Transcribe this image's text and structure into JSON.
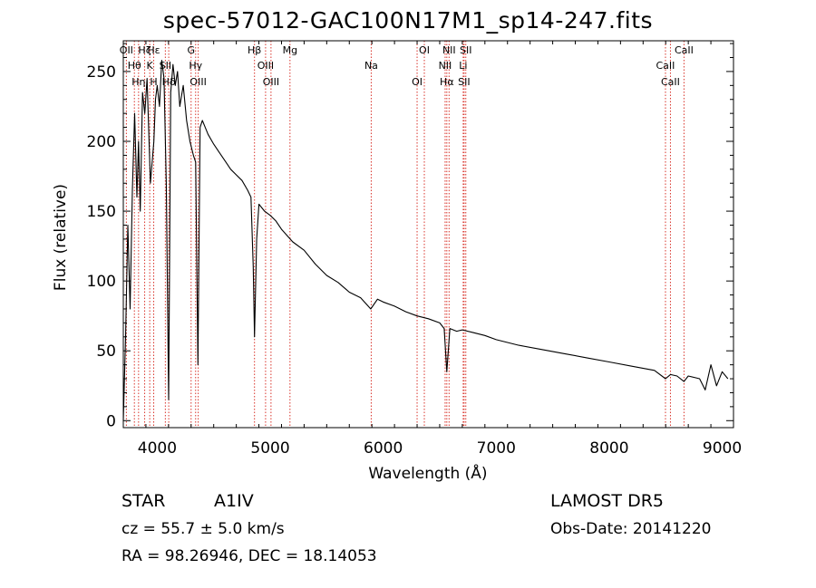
{
  "chart_data": {
    "type": "line",
    "title": "spec-57012-GAC100N17M1_sp14-247.fits",
    "xlabel": "Wavelength (Å)",
    "ylabel": "Flux (relative)",
    "xlim": [
      3700,
      9100
    ],
    "ylim": [
      -5,
      272
    ],
    "xticks": [
      4000,
      5000,
      6000,
      7000,
      8000,
      9000
    ],
    "yticks": [
      0,
      50,
      100,
      150,
      200,
      250
    ],
    "grid": false,
    "series": [
      {
        "x": [
          3700,
          3720,
          3740,
          3760,
          3780,
          3800,
          3820,
          3835,
          3850,
          3870,
          3890,
          3910,
          3940,
          3970,
          3985,
          4000,
          4020,
          4040,
          4060,
          4080,
          4101,
          4120,
          4140,
          4160,
          4180,
          4200,
          4230,
          4260,
          4290,
          4320,
          4340,
          4360,
          4380,
          4400,
          4450,
          4500,
          4550,
          4600,
          4650,
          4700,
          4750,
          4800,
          4830,
          4850,
          4861,
          4880,
          4900,
          4950,
          5000,
          5050,
          5100,
          5200,
          5300,
          5400,
          5500,
          5600,
          5700,
          5800,
          5890,
          5950,
          6000,
          6100,
          6200,
          6300,
          6400,
          6500,
          6540,
          6563,
          6590,
          6650,
          6700,
          6800,
          6900,
          7000,
          7200,
          7400,
          7600,
          7800,
          8000,
          8200,
          8400,
          8498,
          8542,
          8600,
          8662,
          8700,
          8800,
          8850,
          8900,
          8950,
          9000,
          9050
        ],
        "y": [
          0,
          60,
          140,
          80,
          165,
          220,
          160,
          200,
          150,
          235,
          220,
          245,
          170,
          200,
          230,
          240,
          225,
          258,
          245,
          170,
          15,
          235,
          255,
          240,
          250,
          225,
          240,
          215,
          200,
          190,
          185,
          40,
          210,
          215,
          205,
          198,
          192,
          186,
          180,
          176,
          172,
          165,
          160,
          110,
          60,
          130,
          155,
          150,
          147,
          143,
          137,
          128,
          122,
          112,
          104,
          99,
          92,
          88,
          80,
          87,
          85,
          82,
          78,
          75,
          73,
          70,
          66,
          35,
          66,
          64,
          65,
          63,
          61,
          58,
          54,
          51,
          48,
          45,
          42,
          39,
          36,
          30,
          33,
          32,
          28,
          32,
          30,
          22,
          40,
          25,
          35,
          30
        ]
      }
    ],
    "lines": [
      {
        "wl": 3727,
        "labels": [
          "OII"
        ]
      },
      {
        "wl": 3798,
        "labels": [
          "Hθ"
        ]
      },
      {
        "wl": 3835,
        "labels": [
          "Hη"
        ]
      },
      {
        "wl": 3889,
        "labels": [
          "Hζ"
        ]
      },
      {
        "wl": 3934,
        "labels": [
          "K"
        ]
      },
      {
        "wl": 3969,
        "labels": [
          "H",
          "Hε"
        ]
      },
      {
        "wl": 4072,
        "labels": [
          "SII"
        ]
      },
      {
        "wl": 4102,
        "labels": [
          "Hδ"
        ]
      },
      {
        "wl": 4300,
        "labels": [
          "G"
        ]
      },
      {
        "wl": 4340,
        "labels": [
          "Hγ"
        ]
      },
      {
        "wl": 4363,
        "labels": [
          "OIII"
        ]
      },
      {
        "wl": 4861,
        "labels": [
          "Hβ"
        ]
      },
      {
        "wl": 4959,
        "labels": [
          "OIII"
        ]
      },
      {
        "wl": 5007,
        "labels": [
          "OIII"
        ]
      },
      {
        "wl": 5175,
        "labels": [
          "Mg"
        ]
      },
      {
        "wl": 5894,
        "labels": [
          "Na"
        ]
      },
      {
        "wl": 6300,
        "labels": [
          "OI"
        ]
      },
      {
        "wl": 6364,
        "labels": [
          "OI"
        ]
      },
      {
        "wl": 6548,
        "labels": [
          "NII"
        ]
      },
      {
        "wl": 6563,
        "labels": [
          "Hα"
        ]
      },
      {
        "wl": 6583,
        "labels": [
          "NII"
        ]
      },
      {
        "wl": 6708,
        "labels": [
          "Li"
        ]
      },
      {
        "wl": 6716,
        "labels": [
          "SII"
        ]
      },
      {
        "wl": 6731,
        "labels": [
          "SII"
        ]
      },
      {
        "wl": 8498,
        "labels": [
          "CaII"
        ]
      },
      {
        "wl": 8542,
        "labels": [
          "CaII"
        ]
      },
      {
        "wl": 8662,
        "labels": [
          "CaII"
        ]
      }
    ]
  },
  "info": {
    "class": "STAR",
    "subclass": "A1IV",
    "survey": "LAMOST DR5",
    "cz": "cz = 55.7 ± 5.0 km/s",
    "obs_date": "Obs-Date: 20141220",
    "coords": "RA =  98.26946, DEC =  18.14053"
  },
  "colors": {
    "spectrum": "#000000",
    "line_markers": "#d9342b",
    "text": "#000000"
  }
}
